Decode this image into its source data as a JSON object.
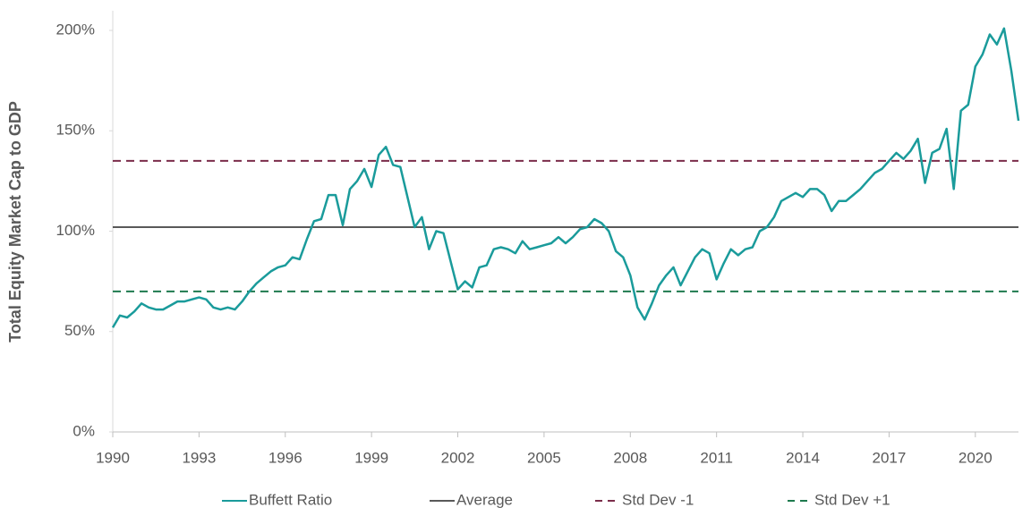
{
  "chart_data": {
    "type": "line",
    "y_label": "Total Equity Market Cap to GDP",
    "x": [
      1990.0,
      1990.25,
      1990.5,
      1990.75,
      1991.0,
      1991.25,
      1991.5,
      1991.75,
      1992.0,
      1992.25,
      1992.5,
      1992.75,
      1993.0,
      1993.25,
      1993.5,
      1993.75,
      1994.0,
      1994.25,
      1994.5,
      1994.75,
      1995.0,
      1995.25,
      1995.5,
      1995.75,
      1996.0,
      1996.25,
      1996.5,
      1996.75,
      1997.0,
      1997.25,
      1997.5,
      1997.75,
      1998.0,
      1998.25,
      1998.5,
      1998.75,
      1999.0,
      1999.25,
      1999.5,
      1999.75,
      2000.0,
      2000.25,
      2000.5,
      2000.75,
      2001.0,
      2001.25,
      2001.5,
      2001.75,
      2002.0,
      2002.25,
      2002.5,
      2002.75,
      2003.0,
      2003.25,
      2003.5,
      2003.75,
      2004.0,
      2004.25,
      2004.5,
      2004.75,
      2005.0,
      2005.25,
      2005.5,
      2005.75,
      2006.0,
      2006.25,
      2006.5,
      2006.75,
      2007.0,
      2007.25,
      2007.5,
      2007.75,
      2008.0,
      2008.25,
      2008.5,
      2008.75,
      2009.0,
      2009.25,
      2009.5,
      2009.75,
      2010.0,
      2010.25,
      2010.5,
      2010.75,
      2011.0,
      2011.25,
      2011.5,
      2011.75,
      2012.0,
      2012.25,
      2012.5,
      2012.75,
      2013.0,
      2013.25,
      2013.5,
      2013.75,
      2014.0,
      2014.25,
      2014.5,
      2014.75,
      2015.0,
      2015.25,
      2015.5,
      2015.75,
      2016.0,
      2016.25,
      2016.5,
      2016.75,
      2017.0,
      2017.25,
      2017.5,
      2017.75,
      2018.0,
      2018.25,
      2018.5,
      2018.75,
      2019.0,
      2019.25,
      2019.5,
      2019.75,
      2020.0,
      2020.25,
      2020.5,
      2020.75,
      2021.0,
      2021.25,
      2021.5
    ],
    "series": [
      {
        "name": "Buffett Ratio",
        "color": "#1a9b9b",
        "values": [
          52,
          58,
          57,
          60,
          64,
          62,
          61,
          61,
          63,
          65,
          65,
          66,
          67,
          66,
          62,
          61,
          62,
          61,
          65,
          70,
          74,
          77,
          80,
          82,
          83,
          87,
          86,
          96,
          105,
          106,
          118,
          118,
          103,
          121,
          125,
          131,
          122,
          138,
          142,
          133,
          132,
          117,
          102,
          107,
          91,
          100,
          99,
          85,
          71,
          75,
          72,
          82,
          83,
          91,
          92,
          91,
          89,
          95,
          91,
          92,
          93,
          94,
          97,
          94,
          97,
          101,
          102,
          106,
          104,
          100,
          90,
          87,
          78,
          62,
          56,
          64,
          73,
          78,
          82,
          73,
          80,
          87,
          91,
          89,
          76,
          84,
          91,
          88,
          91,
          92,
          100,
          102,
          107,
          115,
          117,
          119,
          117,
          121,
          121,
          118,
          110,
          115,
          115,
          118,
          121,
          125,
          129,
          131,
          135,
          139,
          136,
          140,
          146,
          124,
          139,
          141,
          151,
          121,
          160,
          163,
          182,
          188,
          198,
          193,
          201,
          180,
          155
        ]
      }
    ],
    "reference_lines": [
      {
        "name": "Average",
        "value": 102,
        "color": "#595959",
        "dashed": false
      },
      {
        "name": "Std Dev -1",
        "value": 135,
        "color": "#7b2d4a",
        "dashed": true
      },
      {
        "name": "Std Dev +1",
        "value": 70,
        "color": "#1e7a4e",
        "dashed": true
      }
    ],
    "xlim": [
      1990,
      2021.5
    ],
    "xticks": [
      1990,
      1993,
      1996,
      1999,
      2002,
      2005,
      2008,
      2011,
      2014,
      2017,
      2020
    ],
    "ylim": [
      0,
      200
    ],
    "yticks": [
      {
        "value": 0,
        "label": "0%"
      },
      {
        "value": 50,
        "label": "50%"
      },
      {
        "value": 100,
        "label": "100%"
      },
      {
        "value": 150,
        "label": "150%"
      },
      {
        "value": 200,
        "label": "200%"
      }
    ],
    "grid": false,
    "legend": "bottom"
  }
}
